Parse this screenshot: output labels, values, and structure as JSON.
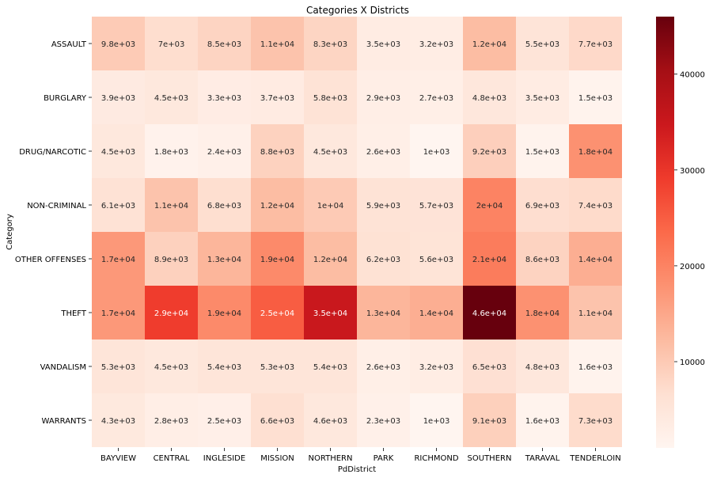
{
  "chart_data": {
    "type": "heatmap",
    "title": "Categories X Districts",
    "xlabel": "PdDistrict",
    "ylabel": "Category",
    "x": [
      "BAYVIEW",
      "CENTRAL",
      "INGLESIDE",
      "MISSION",
      "NORTHERN",
      "PARK",
      "RICHMOND",
      "SOUTHERN",
      "TARAVAL",
      "TENDERLOIN"
    ],
    "y": [
      "ASSAULT",
      "BURGLARY",
      "DRUG/NARCOTIC",
      "NON-CRIMINAL",
      "OTHER OFFENSES",
      "THEFT",
      "VANDALISM",
      "WARRANTS"
    ],
    "values": [
      [
        9800,
        7000,
        8500,
        11000,
        8300,
        3500,
        3200,
        12000,
        5500,
        7700
      ],
      [
        3900,
        4500,
        3300,
        3700,
        5800,
        2900,
        2700,
        4800,
        3500,
        1500
      ],
      [
        4500,
        1800,
        2400,
        8800,
        4500,
        2600,
        1000,
        9200,
        1500,
        18000
      ],
      [
        6100,
        11000,
        6800,
        12000,
        10000,
        5900,
        5700,
        20000,
        6900,
        7400
      ],
      [
        17000,
        8900,
        13000,
        19000,
        12000,
        6200,
        5600,
        21000,
        8600,
        14000
      ],
      [
        17000,
        29000,
        19000,
        25000,
        35000,
        13000,
        14000,
        46000,
        18000,
        11000
      ],
      [
        5300,
        4500,
        5400,
        5300,
        5400,
        2600,
        3200,
        6500,
        4800,
        1600
      ],
      [
        4300,
        2800,
        2500,
        6600,
        4600,
        2300,
        1000,
        9100,
        1600,
        7300
      ]
    ],
    "labels": [
      [
        "9.8e+03",
        "7e+03",
        "8.5e+03",
        "1.1e+04",
        "8.3e+03",
        "3.5e+03",
        "3.2e+03",
        "1.2e+04",
        "5.5e+03",
        "7.7e+03"
      ],
      [
        "3.9e+03",
        "4.5e+03",
        "3.3e+03",
        "3.7e+03",
        "5.8e+03",
        "2.9e+03",
        "2.7e+03",
        "4.8e+03",
        "3.5e+03",
        "1.5e+03"
      ],
      [
        "4.5e+03",
        "1.8e+03",
        "2.4e+03",
        "8.8e+03",
        "4.5e+03",
        "2.6e+03",
        "1e+03",
        "9.2e+03",
        "1.5e+03",
        "1.8e+04"
      ],
      [
        "6.1e+03",
        "1.1e+04",
        "6.8e+03",
        "1.2e+04",
        "1e+04",
        "5.9e+03",
        "5.7e+03",
        "2e+04",
        "6.9e+03",
        "7.4e+03"
      ],
      [
        "1.7e+04",
        "8.9e+03",
        "1.3e+04",
        "1.9e+04",
        "1.2e+04",
        "6.2e+03",
        "5.6e+03",
        "2.1e+04",
        "8.6e+03",
        "1.4e+04"
      ],
      [
        "1.7e+04",
        "2.9e+04",
        "1.9e+04",
        "2.5e+04",
        "3.5e+04",
        "1.3e+04",
        "1.4e+04",
        "4.6e+04",
        "1.8e+04",
        "1.1e+04"
      ],
      [
        "5.3e+03",
        "4.5e+03",
        "5.4e+03",
        "5.3e+03",
        "5.4e+03",
        "2.6e+03",
        "3.2e+03",
        "6.5e+03",
        "4.8e+03",
        "1.6e+03"
      ],
      [
        "4.3e+03",
        "2.8e+03",
        "2.5e+03",
        "6.6e+03",
        "4.6e+03",
        "2.3e+03",
        "1e+03",
        "9.1e+03",
        "1.6e+03",
        "7.3e+03"
      ]
    ],
    "colormap": "Reds",
    "vmin": 1000,
    "vmax": 46000,
    "colorbar": {
      "ticks": [
        10000,
        20000,
        30000,
        40000
      ],
      "tick_labels": [
        "10000",
        "20000",
        "30000",
        "40000"
      ]
    },
    "grid": false,
    "legend": "colorbar-right"
  }
}
